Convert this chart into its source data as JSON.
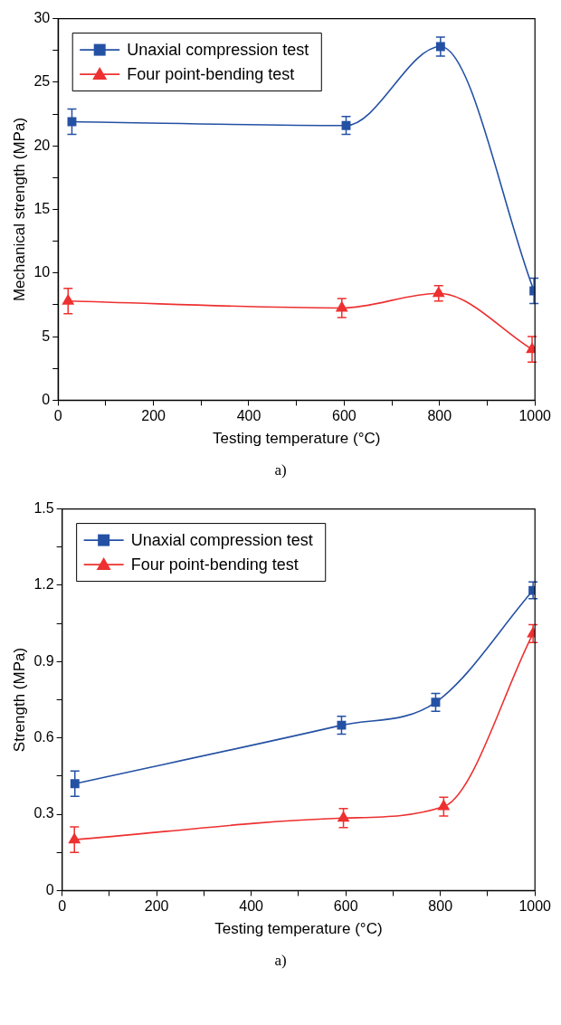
{
  "chart_data": [
    {
      "type": "line",
      "xlabel": "Testing temperature (°C)",
      "ylabel": "Mechanical strength (MPa)",
      "annotations": [
        "a)"
      ],
      "xlim": [
        0,
        1000
      ],
      "xticks": [
        0,
        {
          "value": 100,
          "label": null
        },
        200,
        {
          "value": 300,
          "label": null
        },
        400,
        {
          "value": 500,
          "label": null
        },
        600,
        {
          "value": 700,
          "label": null
        },
        800,
        {
          "value": 900,
          "label": null
        },
        1000
      ],
      "ylim": [
        0,
        30
      ],
      "yticks": [
        0,
        {
          "value": 2.5,
          "label": null
        },
        5,
        {
          "value": 7.5,
          "label": null
        },
        10,
        {
          "value": 12.5,
          "label": null
        },
        15,
        {
          "value": 17.5,
          "label": null
        },
        20,
        {
          "value": 22.5,
          "label": null
        },
        25,
        {
          "value": 27.5,
          "label": null
        },
        30
      ],
      "grid": false,
      "legend": "top left",
      "line_style": "solid",
      "series": [
        {
          "name": "Unaxial compression test",
          "color": "#2451a4",
          "marker": "square",
          "x": [
            29,
            604,
            802,
            998
          ],
          "values": [
            21.9,
            21.6,
            27.8,
            8.6
          ],
          "errors": [
            1.0,
            0.7,
            0.75,
            1.0
          ]
        },
        {
          "name": "Four point-bending test",
          "color": "#ee3030",
          "marker": "triangle",
          "x": [
            21,
            595,
            798,
            994
          ],
          "values": [
            7.8,
            7.25,
            8.4,
            4.0
          ],
          "errors": [
            1.0,
            0.75,
            0.6,
            1.0
          ]
        }
      ]
    },
    {
      "type": "line",
      "xlabel": "Testing temperature (°C)",
      "ylabel": "Strength (MPa)",
      "annotations": [
        "a)"
      ],
      "xlim": [
        0,
        1000
      ],
      "xticks": [
        0,
        {
          "value": 100,
          "label": null
        },
        200,
        {
          "value": 300,
          "label": null
        },
        400,
        {
          "value": 500,
          "label": null
        },
        600,
        {
          "value": 700,
          "label": null
        },
        800,
        {
          "value": 900,
          "label": null
        },
        1000
      ],
      "ylim": [
        0,
        1.5
      ],
      "yticks": [
        0,
        {
          "value": 0.15,
          "label": null
        },
        {
          "value": 0.3,
          "label": "0.3"
        },
        {
          "value": 0.45,
          "label": null
        },
        {
          "value": 0.6,
          "label": "0.6"
        },
        {
          "value": 0.75,
          "label": null
        },
        {
          "value": 0.9,
          "label": "0.9"
        },
        {
          "value": 1.05,
          "label": null
        },
        {
          "value": 1.2,
          "label": "1.2"
        },
        {
          "value": 1.35,
          "label": null
        },
        {
          "value": 1.5,
          "label": "1.5"
        }
      ],
      "grid": false,
      "legend": "top left",
      "line_style": "solid",
      "series": [
        {
          "name": "Unaxial compression test",
          "color": "#2451a4",
          "marker": "square",
          "x": [
            27,
            591,
            790,
            996
          ],
          "values": [
            0.42,
            0.65,
            0.74,
            1.18
          ],
          "errors": [
            0.05,
            0.035,
            0.035,
            0.033
          ]
        },
        {
          "name": "Four point-bending test",
          "color": "#ee3030",
          "marker": "triangle",
          "x": [
            26,
            595,
            807,
            996
          ],
          "values": [
            0.2,
            0.285,
            0.33,
            1.01
          ],
          "errors": [
            0.05,
            0.037,
            0.037,
            0.035
          ]
        }
      ]
    }
  ]
}
